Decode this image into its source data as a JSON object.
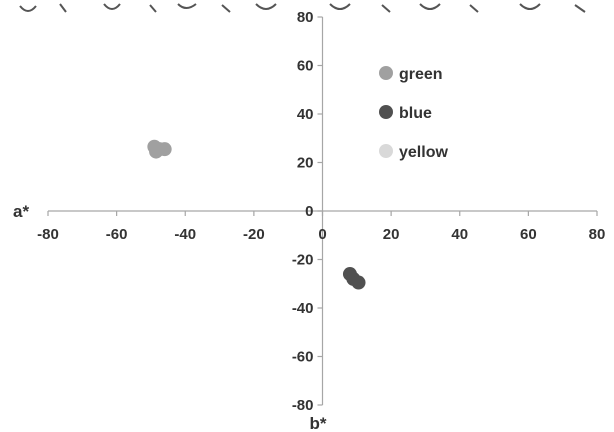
{
  "chart_data": {
    "type": "scatter",
    "xlabel": "a*",
    "ylabel": "b*",
    "xlim": [
      -80,
      80
    ],
    "ylim": [
      -80,
      80
    ],
    "x_ticks": [
      -80,
      -60,
      -40,
      -20,
      0,
      20,
      40,
      60,
      80
    ],
    "y_ticks": [
      80,
      60,
      40,
      20,
      0,
      -20,
      -40,
      -60,
      -80
    ],
    "grid": false,
    "legend_position": "top-right",
    "series": [
      {
        "name": "green",
        "color": "#a0a0a0",
        "points": [
          {
            "x": -49,
            "y": 26.5
          },
          {
            "x": -47.5,
            "y": 25.5
          },
          {
            "x": -46,
            "y": 25.5
          },
          {
            "x": -48.5,
            "y": 24.5
          }
        ]
      },
      {
        "name": "blue",
        "color": "#505050",
        "points": [
          {
            "x": 8,
            "y": -26
          },
          {
            "x": 9,
            "y": -28
          },
          {
            "x": 10.5,
            "y": -29.5
          }
        ]
      },
      {
        "name": "yellow",
        "color": "#d9d9d9",
        "points": []
      }
    ]
  }
}
